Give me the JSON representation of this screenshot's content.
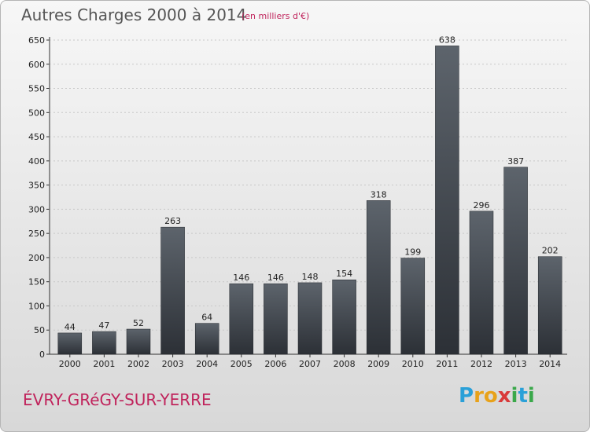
{
  "title": "Autres Charges 2000 à 2014",
  "subtitle": "(en milliers d'€)",
  "commune": "ÉVRY-GRéGY-SUR-YERRE",
  "logo": {
    "letters": [
      "P",
      "r",
      "o",
      "x",
      "i",
      "t",
      "i"
    ],
    "colors": [
      "#2aa0d8",
      "#e8a21a",
      "#e8a21a",
      "#d93a3a",
      "#3aa84a",
      "#2aa0d8",
      "#3aa84a"
    ]
  },
  "colors": {
    "bar_top": "#5d646c",
    "bar_bottom": "#2c3036",
    "grid": "#c8c8c8"
  },
  "chart_data": {
    "type": "bar",
    "categories": [
      "2000",
      "2001",
      "2002",
      "2003",
      "2004",
      "2005",
      "2006",
      "2007",
      "2008",
      "2009",
      "2010",
      "2011",
      "2012",
      "2013",
      "2014"
    ],
    "values": [
      44,
      47,
      52,
      263,
      64,
      146,
      146,
      148,
      154,
      318,
      199,
      638,
      296,
      387,
      202
    ],
    "title": "Autres Charges 2000 à 2014",
    "ylim": [
      0,
      650
    ],
    "yticks": [
      0,
      50,
      100,
      150,
      200,
      250,
      300,
      350,
      400,
      450,
      500,
      550,
      600,
      650
    ],
    "grid": true,
    "legend": "none"
  }
}
